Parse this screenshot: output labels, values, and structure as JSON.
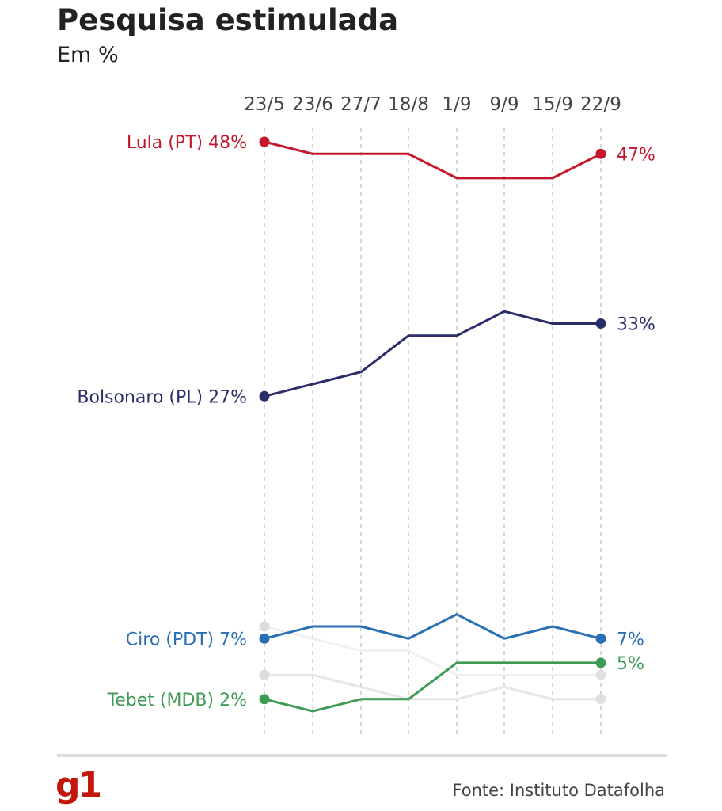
{
  "header": {
    "title": "Pesquisa estimulada",
    "subtitle": "Em %"
  },
  "footer": {
    "logo": "g1",
    "source": "Fonte: Instituto Datafolha"
  },
  "chart_data": {
    "type": "line",
    "title": "Pesquisa estimulada",
    "subtitle": "Em %",
    "x": [
      "23/5",
      "23/6",
      "27/7",
      "18/8",
      "1/9",
      "9/9",
      "15/9",
      "22/9"
    ],
    "ylim": [
      0,
      50
    ],
    "grid": "vertical dashed",
    "legend": "inline labels at line ends",
    "series": [
      {
        "name": "Lula (PT)",
        "color": "#c4182c",
        "values": [
          48,
          47,
          47,
          47,
          45,
          45,
          45,
          47
        ],
        "start_label": "Lula (PT) 48%",
        "end_label": "47%"
      },
      {
        "name": "Bolsonaro (PL)",
        "color": "#2b2d6b",
        "values": [
          27,
          28,
          29,
          32,
          32,
          34,
          33,
          33
        ],
        "start_label": "Bolsonaro (PL) 27%",
        "end_label": "33%"
      },
      {
        "name": "Ciro (PDT)",
        "color": "#2a6fb5",
        "values": [
          7,
          8,
          8,
          7,
          9,
          7,
          8,
          7
        ],
        "start_label": "Ciro (PDT) 7%",
        "end_label": "7%"
      },
      {
        "name": "Tebet (MDB)",
        "color": "#3f9b55",
        "values": [
          2,
          1,
          2,
          2,
          5,
          5,
          5,
          5
        ],
        "start_label": "Tebet (MDB) 2%",
        "end_label": "5%"
      },
      {
        "color": "#e6e6e6",
        "values": [
          4,
          4,
          3,
          2,
          2,
          3,
          2,
          2
        ]
      },
      {
        "color": "#f0f0f0",
        "values": [
          8,
          7,
          6,
          6,
          4,
          4,
          4,
          4
        ]
      }
    ]
  }
}
